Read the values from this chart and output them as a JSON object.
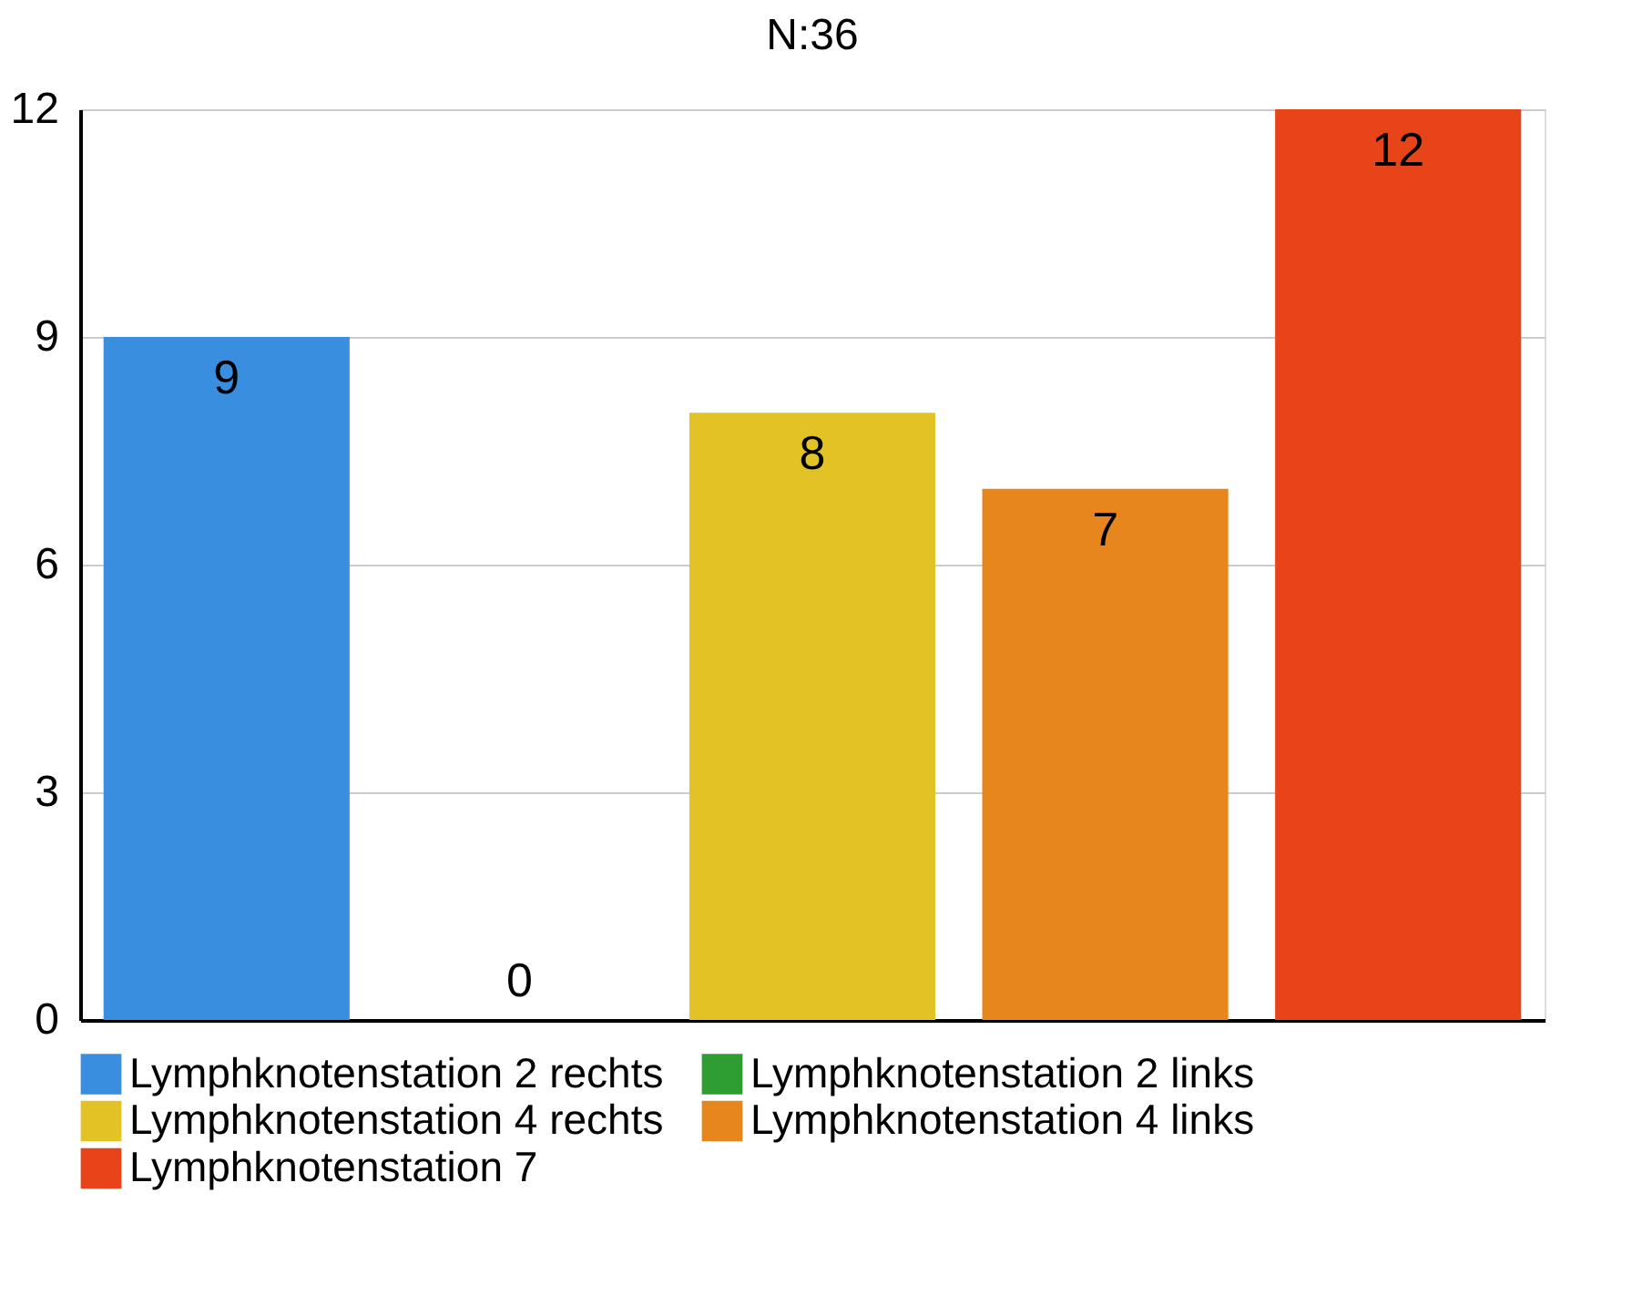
{
  "chart_data": {
    "type": "bar",
    "title": "N:36",
    "categories": [
      null,
      null,
      null,
      null,
      null
    ],
    "series": [
      {
        "name": "Lymphknotenstation 2 rechts",
        "color": "#3a8ee0",
        "values": [
          9,
          null,
          null,
          null,
          null
        ]
      },
      {
        "name": "Lymphknotenstation 2 links",
        "color": "#2e9e32",
        "values": [
          null,
          0,
          null,
          null,
          null
        ]
      },
      {
        "name": "Lymphknotenstation 4 rechts",
        "color": "#e2c224",
        "values": [
          null,
          null,
          8,
          null,
          null
        ]
      },
      {
        "name": "Lymphknotenstation 4 links",
        "color": "#e8861e",
        "values": [
          null,
          null,
          null,
          7,
          null
        ]
      },
      {
        "name": "Lymphknotenstation  7",
        "color": "#e8441a",
        "values": [
          null,
          null,
          null,
          null,
          12
        ]
      }
    ],
    "ylim": [
      0,
      12
    ],
    "yticks": [
      0,
      3,
      6,
      9,
      12
    ],
    "grid": "y",
    "legend": "bottom",
    "data_labels": true,
    "tick_labels": "y"
  }
}
